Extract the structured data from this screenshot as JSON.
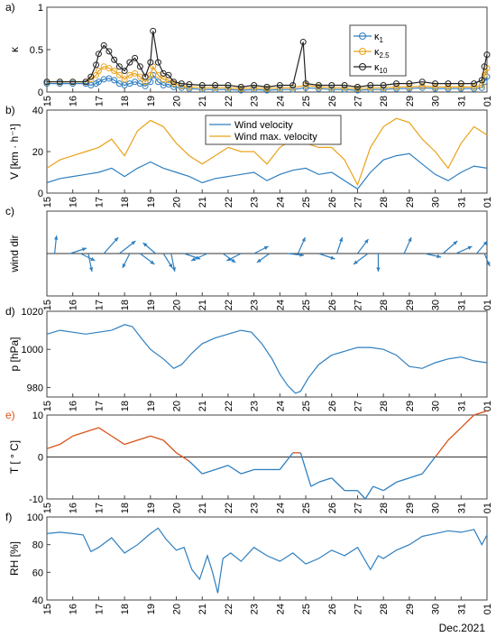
{
  "figure": {
    "footer_label": "Dec.2021",
    "x_ticks": [
      "15",
      "16",
      "17",
      "18",
      "19",
      "20",
      "21",
      "22",
      "23",
      "24",
      "25",
      "26",
      "27",
      "28",
      "29",
      "30",
      "31",
      "01"
    ]
  },
  "colors": {
    "blue": "#2f7fbf",
    "orange": "#e9a21a",
    "black": "#222222",
    "temp_orange": "#d95319",
    "axis": "#444444",
    "grid_zero": "#333333"
  },
  "chart_data": [
    {
      "panel": "a)",
      "type": "line",
      "ylabel": "κ",
      "ylim": [
        0,
        1
      ],
      "yticks": [
        0,
        0.5,
        1
      ],
      "legend": {
        "position": "top-right",
        "entries": [
          {
            "name": "κ",
            "sub": "1",
            "color": "blue"
          },
          {
            "name": "κ",
            "sub": "2.5",
            "color": "orange"
          },
          {
            "name": "κ",
            "sub": "10",
            "color": "black"
          }
        ]
      },
      "series": [
        {
          "name": "κ1",
          "color": "blue",
          "marker": "circle",
          "x": [
            15,
            15.5,
            16,
            16.5,
            16.7,
            16.9,
            17.0,
            17.2,
            17.4,
            17.6,
            17.8,
            18.0,
            18.2,
            18.4,
            18.6,
            18.8,
            19.0,
            19.1,
            19.3,
            19.5,
            19.7,
            19.9,
            20.2,
            20.5,
            21,
            21.5,
            22,
            22.5,
            23,
            23.5,
            24,
            24.5,
            25,
            25.5,
            26,
            26.5,
            27,
            27.5,
            28,
            28.5,
            29,
            29.5,
            30,
            30.5,
            31,
            31.5,
            31.8,
            31.9,
            32
          ],
          "y": [
            0.1,
            0.1,
            0.1,
            0.1,
            0.08,
            0.1,
            0.12,
            0.15,
            0.16,
            0.14,
            0.1,
            0.08,
            0.1,
            0.12,
            0.1,
            0.07,
            0.12,
            0.2,
            0.12,
            0.08,
            0.09,
            0.06,
            0.05,
            0.04,
            0.03,
            0.03,
            0.03,
            0.02,
            0.03,
            0.02,
            0.03,
            0.03,
            0.05,
            0.04,
            0.03,
            0.03,
            0.02,
            0.03,
            0.03,
            0.04,
            0.04,
            0.05,
            0.04,
            0.04,
            0.04,
            0.04,
            0.05,
            0.12,
            0.18
          ]
        },
        {
          "name": "κ2.5",
          "color": "orange",
          "marker": "circle",
          "x": [
            15,
            15.5,
            16,
            16.5,
            16.7,
            16.9,
            17.0,
            17.2,
            17.4,
            17.6,
            17.8,
            18.0,
            18.2,
            18.4,
            18.6,
            18.8,
            19.0,
            19.1,
            19.3,
            19.5,
            19.7,
            19.9,
            20.2,
            20.5,
            21,
            21.5,
            22,
            22.5,
            23,
            23.5,
            24,
            24.5,
            25,
            25.5,
            26,
            26.5,
            27,
            27.5,
            28,
            28.5,
            29,
            29.5,
            30,
            30.5,
            31,
            31.5,
            31.8,
            31.9,
            32
          ],
          "y": [
            0.12,
            0.12,
            0.12,
            0.12,
            0.15,
            0.2,
            0.25,
            0.3,
            0.28,
            0.25,
            0.2,
            0.15,
            0.2,
            0.22,
            0.18,
            0.12,
            0.2,
            0.3,
            0.2,
            0.15,
            0.14,
            0.1,
            0.07,
            0.06,
            0.05,
            0.05,
            0.05,
            0.04,
            0.05,
            0.04,
            0.05,
            0.05,
            0.08,
            0.06,
            0.05,
            0.05,
            0.04,
            0.05,
            0.05,
            0.06,
            0.06,
            0.07,
            0.06,
            0.06,
            0.06,
            0.06,
            0.08,
            0.2,
            0.28
          ]
        },
        {
          "name": "κ10",
          "color": "black",
          "marker": "circle-open",
          "x": [
            15,
            15.5,
            16,
            16.5,
            16.7,
            16.9,
            17.0,
            17.2,
            17.4,
            17.6,
            17.8,
            18.0,
            18.2,
            18.4,
            18.6,
            18.8,
            19.0,
            19.1,
            19.3,
            19.5,
            19.7,
            19.9,
            20.2,
            20.5,
            21,
            21.5,
            22,
            22.5,
            23,
            23.5,
            24,
            24.5,
            24.9,
            25,
            25.5,
            26,
            26.5,
            27,
            27.5,
            28,
            28.5,
            29,
            29.5,
            30,
            30.5,
            31,
            31.5,
            31.8,
            31.9,
            32
          ],
          "y": [
            0.12,
            0.12,
            0.12,
            0.12,
            0.18,
            0.32,
            0.45,
            0.55,
            0.48,
            0.38,
            0.3,
            0.25,
            0.35,
            0.4,
            0.3,
            0.18,
            0.35,
            0.72,
            0.35,
            0.22,
            0.2,
            0.12,
            0.1,
            0.09,
            0.08,
            0.08,
            0.08,
            0.06,
            0.08,
            0.06,
            0.08,
            0.08,
            0.59,
            0.1,
            0.08,
            0.08,
            0.08,
            0.06,
            0.08,
            0.08,
            0.1,
            0.1,
            0.12,
            0.1,
            0.1,
            0.1,
            0.1,
            0.14,
            0.3,
            0.44
          ]
        }
      ]
    },
    {
      "panel": "b)",
      "type": "line",
      "ylabel": "V [km · h⁻¹]",
      "ylim": [
        0,
        40
      ],
      "yticks": [
        0,
        20,
        40
      ],
      "legend": {
        "position": "top-center",
        "entries": [
          {
            "name": "Wind velocity",
            "color": "blue"
          },
          {
            "name": "Wind max. velocity",
            "color": "orange"
          }
        ]
      },
      "series": [
        {
          "name": "Wind velocity",
          "color": "blue",
          "x": [
            15,
            15.5,
            16,
            16.5,
            17,
            17.5,
            18,
            18.5,
            19,
            19.5,
            20,
            20.5,
            21,
            21.5,
            22,
            22.5,
            23,
            23.5,
            24,
            24.5,
            25,
            25.5,
            26,
            26.5,
            27,
            27.5,
            28,
            28.5,
            29,
            29.5,
            30,
            30.5,
            31,
            31.5,
            32
          ],
          "y": [
            5,
            7,
            8,
            9,
            10,
            12,
            8,
            12,
            15,
            12,
            10,
            8,
            5,
            7,
            8,
            9,
            10,
            6,
            9,
            11,
            12,
            9,
            10,
            6,
            2,
            10,
            16,
            18,
            19,
            14,
            9,
            6,
            10,
            13,
            12
          ]
        },
        {
          "name": "Wind max. velocity",
          "color": "orange",
          "x": [
            15,
            15.5,
            16,
            16.5,
            17,
            17.5,
            18,
            18.5,
            19,
            19.5,
            20,
            20.5,
            21,
            21.5,
            22,
            22.5,
            23,
            23.5,
            24,
            24.5,
            25,
            25.5,
            26,
            26.5,
            27,
            27.5,
            28,
            28.5,
            29,
            29.5,
            30,
            30.5,
            31,
            31.5,
            32
          ],
          "y": [
            12,
            16,
            18,
            20,
            22,
            26,
            18,
            30,
            35,
            32,
            24,
            18,
            14,
            18,
            22,
            20,
            20,
            14,
            22,
            26,
            24,
            22,
            22,
            16,
            4,
            22,
            32,
            36,
            34,
            26,
            20,
            12,
            24,
            32,
            28
          ]
        }
      ]
    },
    {
      "panel": "c)",
      "type": "quiver",
      "ylabel": "wind dir",
      "vectors": [
        {
          "x": 15.3,
          "dx": 0.1,
          "dy": 1.0
        },
        {
          "x": 15.9,
          "dx": 0.9,
          "dy": 0.3
        },
        {
          "x": 16.3,
          "dx": 0.8,
          "dy": -0.4
        },
        {
          "x": 16.6,
          "dx": 0.2,
          "dy": -1.0
        },
        {
          "x": 17.2,
          "dx": 0.8,
          "dy": 0.9
        },
        {
          "x": 17.8,
          "dx": 0.9,
          "dy": 0.7
        },
        {
          "x": 18.2,
          "dx": -0.4,
          "dy": -0.8
        },
        {
          "x": 18.6,
          "dx": 0.8,
          "dy": -0.6
        },
        {
          "x": 19.2,
          "dx": -0.7,
          "dy": 0.6
        },
        {
          "x": 19.5,
          "dx": 0.5,
          "dy": -0.8
        },
        {
          "x": 19.8,
          "dx": 0.2,
          "dy": -1.0
        },
        {
          "x": 20.3,
          "dx": 0.9,
          "dy": -0.3
        },
        {
          "x": 21.2,
          "dx": -0.9,
          "dy": -0.4
        },
        {
          "x": 21.8,
          "dx": 0.7,
          "dy": -0.5
        },
        {
          "x": 22.5,
          "dx": -0.8,
          "dy": -0.4
        },
        {
          "x": 23.0,
          "dx": 0.8,
          "dy": 0.4
        },
        {
          "x": 23.6,
          "dx": -0.7,
          "dy": -0.5
        },
        {
          "x": 24.3,
          "dx": 0.9,
          "dy": -0.1
        },
        {
          "x": 24.7,
          "dx": 0.4,
          "dy": 0.9
        },
        {
          "x": 25.5,
          "dx": 0.9,
          "dy": -0.3
        },
        {
          "x": 26.2,
          "dx": 0.3,
          "dy": 0.9
        },
        {
          "x": 27.0,
          "dx": 0.6,
          "dy": 0.8
        },
        {
          "x": 27.4,
          "dx": -0.8,
          "dy": -0.6
        },
        {
          "x": 27.8,
          "dx": 0.0,
          "dy": -1.0
        },
        {
          "x": 28.8,
          "dx": 0.4,
          "dy": 0.9
        },
        {
          "x": 29.6,
          "dx": 0.9,
          "dy": -0.2
        },
        {
          "x": 30.3,
          "dx": 0.8,
          "dy": 0.7
        },
        {
          "x": 30.8,
          "dx": 0.9,
          "dy": 0.4
        },
        {
          "x": 31.6,
          "dx": 0.6,
          "dy": 0.7
        },
        {
          "x": 31.9,
          "dx": 0.3,
          "dy": -0.7
        }
      ]
    },
    {
      "panel": "d)",
      "type": "line",
      "ylabel": "p [hPa]",
      "ylim": [
        975,
        1020
      ],
      "yticks": [
        980,
        1000,
        1020
      ],
      "series": [
        {
          "name": "p",
          "color": "blue",
          "x": [
            15,
            15.5,
            16,
            16.5,
            17,
            17.5,
            18,
            18.3,
            18.7,
            19,
            19.5,
            19.9,
            20.2,
            20.6,
            21,
            21.5,
            22,
            22.5,
            22.9,
            23.3,
            23.7,
            24,
            24.3,
            24.6,
            24.8,
            25.1,
            25.5,
            26,
            26.5,
            27,
            27.5,
            28,
            28.5,
            29,
            29.5,
            30,
            30.5,
            31,
            31.5,
            32
          ],
          "y": [
            1008,
            1010,
            1009,
            1008,
            1009,
            1010,
            1013,
            1012,
            1005,
            1000,
            995,
            990,
            992,
            998,
            1003,
            1006,
            1008,
            1010,
            1009,
            1003,
            995,
            987,
            981,
            977,
            978,
            985,
            992,
            997,
            999,
            1001,
            1001,
            1000,
            997,
            991,
            990,
            993,
            995,
            996,
            994,
            993
          ]
        }
      ]
    },
    {
      "panel": "e)",
      "type": "line",
      "ylabel": "T [ ° C]",
      "ylim": [
        -10,
        10
      ],
      "yticks": [
        -10,
        0,
        10
      ],
      "series": [
        {
          "name": "T",
          "color": "two-tone",
          "x": [
            15,
            15.5,
            16,
            16.5,
            17,
            17.5,
            18,
            18.5,
            19,
            19.5,
            20,
            20.5,
            21,
            21.5,
            22,
            22.5,
            23,
            23.5,
            24,
            24.5,
            24.8,
            25.2,
            25.5,
            26,
            26.5,
            27,
            27.3,
            27.6,
            28,
            28.5,
            29,
            29.5,
            30,
            30.5,
            31,
            31.5,
            32
          ],
          "y": [
            2,
            3,
            5,
            6,
            7,
            5,
            3,
            4,
            5,
            4,
            1,
            -1,
            -4,
            -3,
            -2,
            -4,
            -3,
            -3,
            -3,
            1,
            1,
            -7,
            -6,
            -5,
            -8,
            -8,
            -10,
            -7,
            -8,
            -6,
            -5,
            -4,
            0,
            4,
            7,
            10,
            11
          ]
        }
      ]
    },
    {
      "panel": "f)",
      "type": "line",
      "ylabel": "RH [%]",
      "ylim": [
        40,
        100
      ],
      "yticks": [
        40,
        60,
        80,
        100
      ],
      "series": [
        {
          "name": "RH",
          "color": "blue",
          "x": [
            15,
            15.5,
            16,
            16.4,
            16.7,
            17,
            17.5,
            18,
            18.5,
            19,
            19.3,
            19.6,
            20,
            20.3,
            20.6,
            20.9,
            21.2,
            21.4,
            21.6,
            21.8,
            22.1,
            22.5,
            23,
            23.5,
            24,
            24.5,
            25,
            25.5,
            26,
            26.5,
            27,
            27.5,
            27.8,
            28,
            28.5,
            29,
            29.5,
            30,
            30.5,
            31,
            31.5,
            31.8,
            32
          ],
          "y": [
            88,
            89,
            88,
            87,
            75,
            78,
            85,
            74,
            80,
            88,
            92,
            84,
            76,
            78,
            62,
            55,
            72,
            60,
            45,
            70,
            74,
            68,
            78,
            72,
            68,
            74,
            66,
            70,
            76,
            72,
            78,
            62,
            72,
            70,
            76,
            80,
            86,
            88,
            90,
            89,
            91,
            80,
            87
          ]
        }
      ]
    }
  ]
}
